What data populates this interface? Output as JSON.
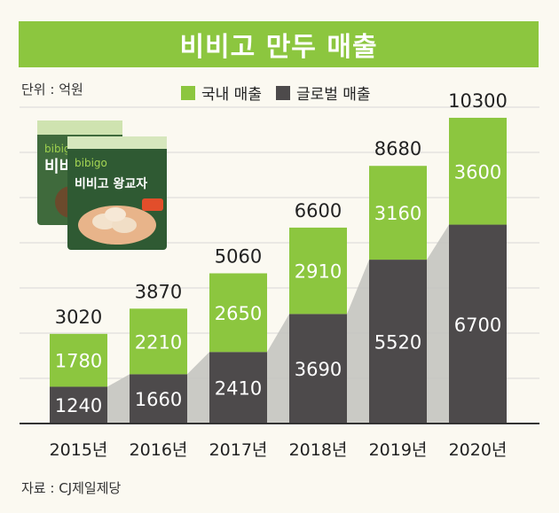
{
  "title": "비비고 만두 매출",
  "unit_label": "단위 : 억원",
  "source": "자료 : CJ제일제당",
  "product_image": {
    "brand_back": "bibigo",
    "brand_front": "bibigo",
    "text_back": "비비",
    "text_front": "비비고 왕교자"
  },
  "colors": {
    "domestic": "#8cc63f",
    "global": "#4d4a4b",
    "trend": "#c4c4c0",
    "title_bg": "#8cc63f"
  },
  "chart_data": {
    "type": "bar",
    "stacked": true,
    "title": "비비고 만두 매출",
    "unit": "억원",
    "categories": [
      "2015년",
      "2016년",
      "2017년",
      "2018년",
      "2019년",
      "2020년"
    ],
    "series": [
      {
        "name": "글로벌 매출",
        "values": [
          1240,
          1660,
          2410,
          3690,
          5520,
          6700
        ]
      },
      {
        "name": "국내 매출",
        "values": [
          1780,
          2210,
          2650,
          2910,
          3160,
          3600
        ]
      }
    ],
    "totals": [
      3020,
      3870,
      5060,
      6600,
      8680,
      10300
    ],
    "legend": [
      "국내 매출",
      "글로벌 매출"
    ],
    "legend_position": "top",
    "ylim": [
      0,
      11000
    ],
    "grid": true
  }
}
